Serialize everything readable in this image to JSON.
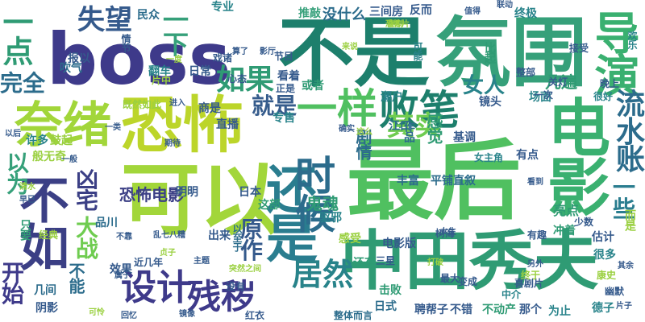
{
  "words": [
    {
      "text": "boss",
      "color": "#3e3a8a"
    },
    {
      "text": "最后",
      "color": "#50c060"
    },
    {
      "text": "不是",
      "color": "#1d7f6c"
    },
    {
      "text": "氛围",
      "color": "#36a07a"
    },
    {
      "text": "恐怖",
      "color": "#bcd52a"
    },
    {
      "text": "可以",
      "color": "#a2d63a"
    },
    {
      "text": "中田秀夫",
      "color": "#2f9b74"
    },
    {
      "text": "电影",
      "color": "#3ab070"
    },
    {
      "text": "导演",
      "color": "#3ab070"
    },
    {
      "text": "奈绪",
      "color": "#a2d63a"
    },
    {
      "text": "不如",
      "color": "#3b3f85"
    },
    {
      "text": "还是",
      "color": "#2a7d8f"
    },
    {
      "text": "时候",
      "color": "#2c6c8c"
    },
    {
      "text": "一样",
      "color": "#50c060"
    },
    {
      "text": "败笔",
      "color": "#1d7f6c"
    },
    {
      "text": "设计",
      "color": "#3e3a8a"
    },
    {
      "text": "残秽",
      "color": "#3e3a8a"
    },
    {
      "text": "一点",
      "color": "#2f9b74"
    },
    {
      "text": "一下",
      "color": "#36a07a"
    },
    {
      "text": "如果",
      "color": "#2f9b74"
    },
    {
      "text": "失望",
      "color": "#355a8c"
    },
    {
      "text": "居然",
      "color": "#28838a"
    },
    {
      "text": "其实",
      "color": "#6fcc50"
    },
    {
      "text": "就是",
      "color": "#365c8c"
    },
    {
      "text": "流水账",
      "color": "#2c6c8c"
    },
    {
      "text": "一些",
      "color": "#2a7d8f"
    },
    {
      "text": "以为",
      "color": "#36a07a"
    },
    {
      "text": "凶宅",
      "color": "#3b3f85"
    },
    {
      "text": "女人",
      "color": "#28838a"
    },
    {
      "text": "完全",
      "color": "#2c6c8c"
    },
    {
      "text": "大战",
      "color": "#6fcc50"
    },
    {
      "text": "原作",
      "color": "#355a8c"
    },
    {
      "text": "开始",
      "color": "#3e3a8a"
    },
    {
      "text": "不能",
      "color": "#2c6c8c"
    },
    {
      "text": "恐怖电影",
      "color": "#3b3f85"
    },
    {
      "text": "鬼魂",
      "color": "#2f9b74"
    },
    {
      "text": "剧情",
      "color": "#2c6c8c"
    },
    {
      "text": "感觉",
      "color": "#2f9b74"
    },
    {
      "text": "没什么",
      "color": "#2c6c8c"
    },
    {
      "text": "推敲",
      "color": "#36a07a"
    },
    {
      "text": "几遍",
      "color": "#2f9b74"
    },
    {
      "text": "专业",
      "color": "#28838a"
    },
    {
      "text": "民众",
      "color": "#2c6c8c"
    },
    {
      "text": "三间房",
      "color": "#355a8c"
    },
    {
      "text": "反而",
      "color": "#355a8c"
    },
    {
      "text": "终极",
      "color": "#28838a"
    },
    {
      "text": "节目",
      "color": "#355a8c"
    },
    {
      "text": "日常",
      "color": "#355a8c"
    },
    {
      "text": "情节",
      "color": "#355a8c"
    },
    {
      "text": "作品",
      "color": "#2c6c8c"
    },
    {
      "text": "江口",
      "color": "#2c6c8c"
    },
    {
      "text": "瀬户",
      "color": "#28838a"
    },
    {
      "text": "比起",
      "color": "#2f9b74"
    },
    {
      "text": "镜头",
      "color": "#355a8c"
    },
    {
      "text": "场面",
      "color": "#28838a"
    },
    {
      "text": "吹气",
      "color": "#2c6c8c"
    },
    {
      "text": "翻车",
      "color": "#28838a"
    },
    {
      "text": "看着",
      "color": "#355a8c"
    },
    {
      "text": "或者",
      "color": "#2f9b74"
    },
    {
      "text": "商是",
      "color": "#355a8c"
    },
    {
      "text": "直播",
      "color": "#355a8c"
    },
    {
      "text": "专售",
      "color": "#28838a"
    },
    {
      "text": "可能",
      "color": "#28838a"
    },
    {
      "text": "报以",
      "color": "#355a8c"
    },
    {
      "text": "许多",
      "color": "#28838a"
    },
    {
      "text": "鼓起",
      "color": "#9ad040"
    },
    {
      "text": "般无奇",
      "color": "#9ad040"
    },
    {
      "text": "品川",
      "color": "#2c6c8c"
    },
    {
      "text": "只要",
      "color": "#2f9b74"
    },
    {
      "text": "效果",
      "color": "#355a8c"
    },
    {
      "text": "出来",
      "color": "#355a8c"
    },
    {
      "text": "这部",
      "color": "#2f9b74"
    },
    {
      "text": "日本",
      "color": "#355a8c"
    },
    {
      "text": "明明",
      "color": "#355a8c"
    },
    {
      "text": "驱邪",
      "color": "#28838a"
    },
    {
      "text": "感受",
      "color": "#9ad040"
    },
    {
      "text": "电影版",
      "color": "#355a8c"
    },
    {
      "text": "冲着",
      "color": "#2f9b74"
    },
    {
      "text": "估计",
      "color": "#355a8c"
    },
    {
      "text": "很多",
      "color": "#28838a"
    },
    {
      "text": "亮点",
      "color": "#2f9b74"
    },
    {
      "text": "有点",
      "color": "#355a8c"
    },
    {
      "text": "女主角",
      "color": "#28838a"
    },
    {
      "text": "丰富",
      "color": "#2c6c8c"
    },
    {
      "text": "平铺直叙",
      "color": "#2c6c8c"
    },
    {
      "text": "基调",
      "color": "#355a8c"
    },
    {
      "text": "击败",
      "color": "#2f9b74"
    },
    {
      "text": "日式",
      "color": "#2c6c8c"
    },
    {
      "text": "聘帮子",
      "color": "#355a8c"
    },
    {
      "text": "不错",
      "color": "#355a8c"
    },
    {
      "text": "不动产",
      "color": "#2f9b74"
    },
    {
      "text": "那个",
      "color": "#355a8c"
    },
    {
      "text": "为止",
      "color": "#28838a"
    },
    {
      "text": "德子",
      "color": "#28838a"
    },
    {
      "text": "幽默",
      "color": "#355a8c"
    },
    {
      "text": "康史",
      "color": "#9ad040"
    },
    {
      "text": "阴影",
      "color": "#355a8c"
    },
    {
      "text": "几间",
      "color": "#2c6c8c"
    },
    {
      "text": "还有",
      "color": "#2f9b74"
    },
    {
      "text": "三星",
      "color": "#355a8c"
    },
    {
      "text": "喜剧片",
      "color": "#355a8c"
    },
    {
      "text": "中介",
      "color": "#28838a"
    },
    {
      "text": "最大",
      "color": "#355a8c"
    },
    {
      "text": "变成",
      "color": "#355a8c"
    },
    {
      "text": "整体而言",
      "color": "#2c6c8c"
    },
    {
      "text": "红衣",
      "color": "#355a8c"
    },
    {
      "text": "以至于",
      "color": "#2c6c8c"
    },
    {
      "text": "没有",
      "color": "#355a8c"
    },
    {
      "text": "树海",
      "color": "#355a8c"
    },
    {
      "text": "有趣",
      "color": "#355a8c"
    },
    {
      "text": "少数",
      "color": "#355a8c"
    },
    {
      "text": "而是",
      "color": "#9ad040"
    },
    {
      "text": "整部",
      "color": "#355a8c"
    },
    {
      "text": "一次",
      "color": "#355a8c"
    },
    {
      "text": "关灯",
      "color": "#355a8c"
    },
    {
      "text": "晚上",
      "color": "#355a8c"
    },
    {
      "text": "很好",
      "color": "#28838a"
    },
    {
      "text": "接受",
      "color": "#355a8c"
    },
    {
      "text": "欢乐",
      "color": "#28838a"
    },
    {
      "text": "联动",
      "color": "#355a8c"
    },
    {
      "text": "值得",
      "color": "#355a8c"
    },
    {
      "text": "喜剧",
      "color": "#9ad040"
    },
    {
      "text": "来说",
      "color": "#9ad040"
    },
    {
      "text": "心态",
      "color": "#355a8c"
    },
    {
      "text": "片中",
      "color": "#9ad040"
    },
    {
      "text": "正是",
      "color": "#355a8c"
    },
    {
      "text": "影厅",
      "color": "#355a8c"
    },
    {
      "text": "戏诸",
      "color": "#355a8c"
    },
    {
      "text": "一度",
      "color": "#9ad040"
    },
    {
      "text": "既然如此",
      "color": "#9ad040"
    },
    {
      "text": "进入",
      "color": "#355a8c"
    },
    {
      "text": "一类",
      "color": "#355a8c"
    },
    {
      "text": "一般",
      "color": "#355a8c"
    },
    {
      "text": "经典",
      "color": "#9ad040"
    },
    {
      "text": "期待",
      "color": "#355a8c"
    },
    {
      "text": "主题",
      "color": "#355a8c"
    },
    {
      "text": "近几年",
      "color": "#355a8c"
    },
    {
      "text": "属于",
      "color": "#355a8c"
    },
    {
      "text": "可怜",
      "color": "#9ad040"
    },
    {
      "text": "镜像",
      "color": "#355a8c"
    },
    {
      "text": "回忆",
      "color": "#355a8c"
    },
    {
      "text": "终于",
      "color": "#9ad040"
    },
    {
      "text": "另外",
      "color": "#355a8c"
    },
    {
      "text": "其余",
      "color": "#355a8c"
    },
    {
      "text": "片子",
      "color": "#355a8c"
    },
    {
      "text": "恐怖片",
      "color": "#9ad040"
    },
    {
      "text": "确实",
      "color": "#355a8c"
    },
    {
      "text": "女生",
      "color": "#355a8c"
    },
    {
      "text": "打破",
      "color": "#9ad040"
    },
    {
      "text": "贞子",
      "color": "#9ad040"
    },
    {
      "text": "算了",
      "color": "#355a8c"
    },
    {
      "text": "以后",
      "color": "#355a8c"
    },
    {
      "text": "不靠",
      "color": "#355a8c"
    },
    {
      "text": "这么",
      "color": "#9ad040"
    },
    {
      "text": "看到",
      "color": "#355a8c"
    },
    {
      "text": "早已",
      "color": "#355a8c"
    },
    {
      "text": "清水",
      "color": "#9ad040"
    },
    {
      "text": "乱七八糟",
      "color": "#355a8c"
    },
    {
      "text": "突然之间",
      "color": "#9ad040"
    }
  ]
}
